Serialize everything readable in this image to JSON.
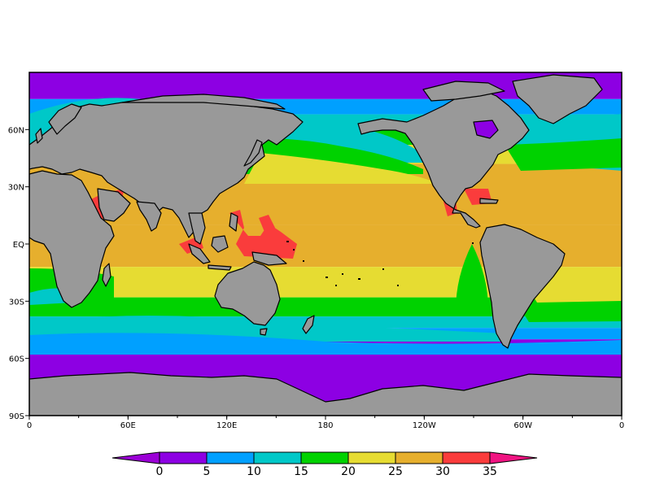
{
  "map": {
    "projection": "cylindrical equidistant",
    "lon_range": [
      0,
      360
    ],
    "lat_range": [
      -90,
      90
    ],
    "land_color": "#999999",
    "coastline_color": "#000000",
    "x_ticks": [
      {
        "lon": 0,
        "label": "0"
      },
      {
        "lon": 60,
        "label": "60E"
      },
      {
        "lon": 120,
        "label": "120E"
      },
      {
        "lon": 180,
        "label": "180"
      },
      {
        "lon": 240,
        "label": "120W"
      },
      {
        "lon": 300,
        "label": "60W"
      },
      {
        "lon": 360,
        "label": "0"
      }
    ],
    "y_ticks": [
      {
        "lat": 60,
        "label": "60N"
      },
      {
        "lat": 30,
        "label": "30N"
      },
      {
        "lat": 0,
        "label": "EQ"
      },
      {
        "lat": -30,
        "label": "30S"
      },
      {
        "lat": -60,
        "label": "60S"
      },
      {
        "lat": -90,
        "label": "90S"
      }
    ]
  },
  "colorbar": {
    "levels": [
      0,
      5,
      10,
      15,
      20,
      25,
      30,
      35
    ],
    "colors": [
      "#9b00d6",
      "#8d00e3",
      "#00a0ff",
      "#00c8c8",
      "#00d200",
      "#e6dc32",
      "#e6af2d",
      "#fa3c3c",
      "#f01482"
    ],
    "labels": [
      "0",
      "5",
      "10",
      "15",
      "20",
      "25",
      "30",
      "35"
    ]
  }
}
